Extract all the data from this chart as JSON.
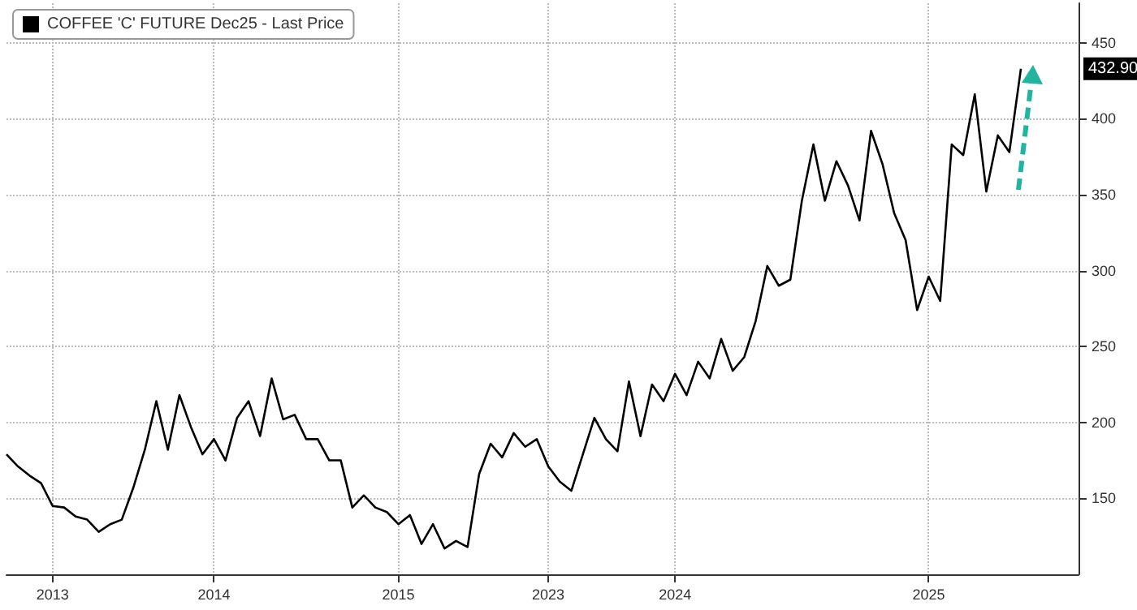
{
  "chart_data": {
    "type": "line",
    "legend": "top left",
    "grid": true,
    "marker": "none",
    "line_style": "solid",
    "categories": [
      null,
      null,
      null,
      null,
      "2013",
      null,
      null,
      null,
      null,
      null,
      null,
      null,
      null,
      null,
      null,
      null,
      null,
      null,
      "2014",
      null,
      null,
      null,
      null,
      null,
      null,
      null,
      null,
      null,
      null,
      null,
      null,
      null,
      null,
      null,
      "2015",
      null,
      null,
      null,
      null,
      null,
      null,
      null,
      null,
      null,
      null,
      null,
      null,
      "2023",
      null,
      null,
      null,
      null,
      null,
      null,
      null,
      null,
      null,
      null,
      "2024",
      null,
      null,
      null,
      null,
      null,
      null,
      null,
      null,
      null,
      null,
      null,
      null,
      null,
      null,
      null,
      null,
      null,
      null,
      null,
      null,
      null,
      "2025",
      null,
      null,
      null,
      null,
      null,
      null,
      null,
      null,
      null,
      null,
      null,
      null,
      null
    ],
    "ylim": [
      100,
      476
    ],
    "yticks": [
      150,
      200,
      250,
      300,
      350,
      400,
      450
    ],
    "annotations": [
      "432.90"
    ],
    "series": [
      {
        "name": "COFFEE 'C' FUTURE Dec25 - Last Price",
        "color": "#000000",
        "values": [
          179,
          171,
          165,
          160,
          145,
          144,
          138,
          136,
          128,
          133,
          136,
          157,
          182,
          214,
          182,
          218,
          197,
          179,
          189,
          175,
          203,
          214,
          191,
          229,
          202,
          205,
          189,
          189,
          175,
          175,
          144,
          152,
          144,
          141,
          133,
          139,
          120,
          133,
          117,
          122,
          118,
          166,
          186,
          177,
          193,
          184,
          189,
          171,
          161,
          155,
          179,
          203,
          189,
          181,
          227,
          191,
          225,
          214,
          232,
          218,
          240,
          229,
          255,
          234,
          243,
          267,
          303,
          290,
          294,
          346,
          383,
          346,
          372,
          356,
          333,
          392,
          370,
          338,
          320,
          274,
          296,
          280,
          383,
          376,
          416,
          352,
          389,
          378,
          432.9,
          null,
          null,
          null,
          null,
          null
        ]
      }
    ]
  }
}
